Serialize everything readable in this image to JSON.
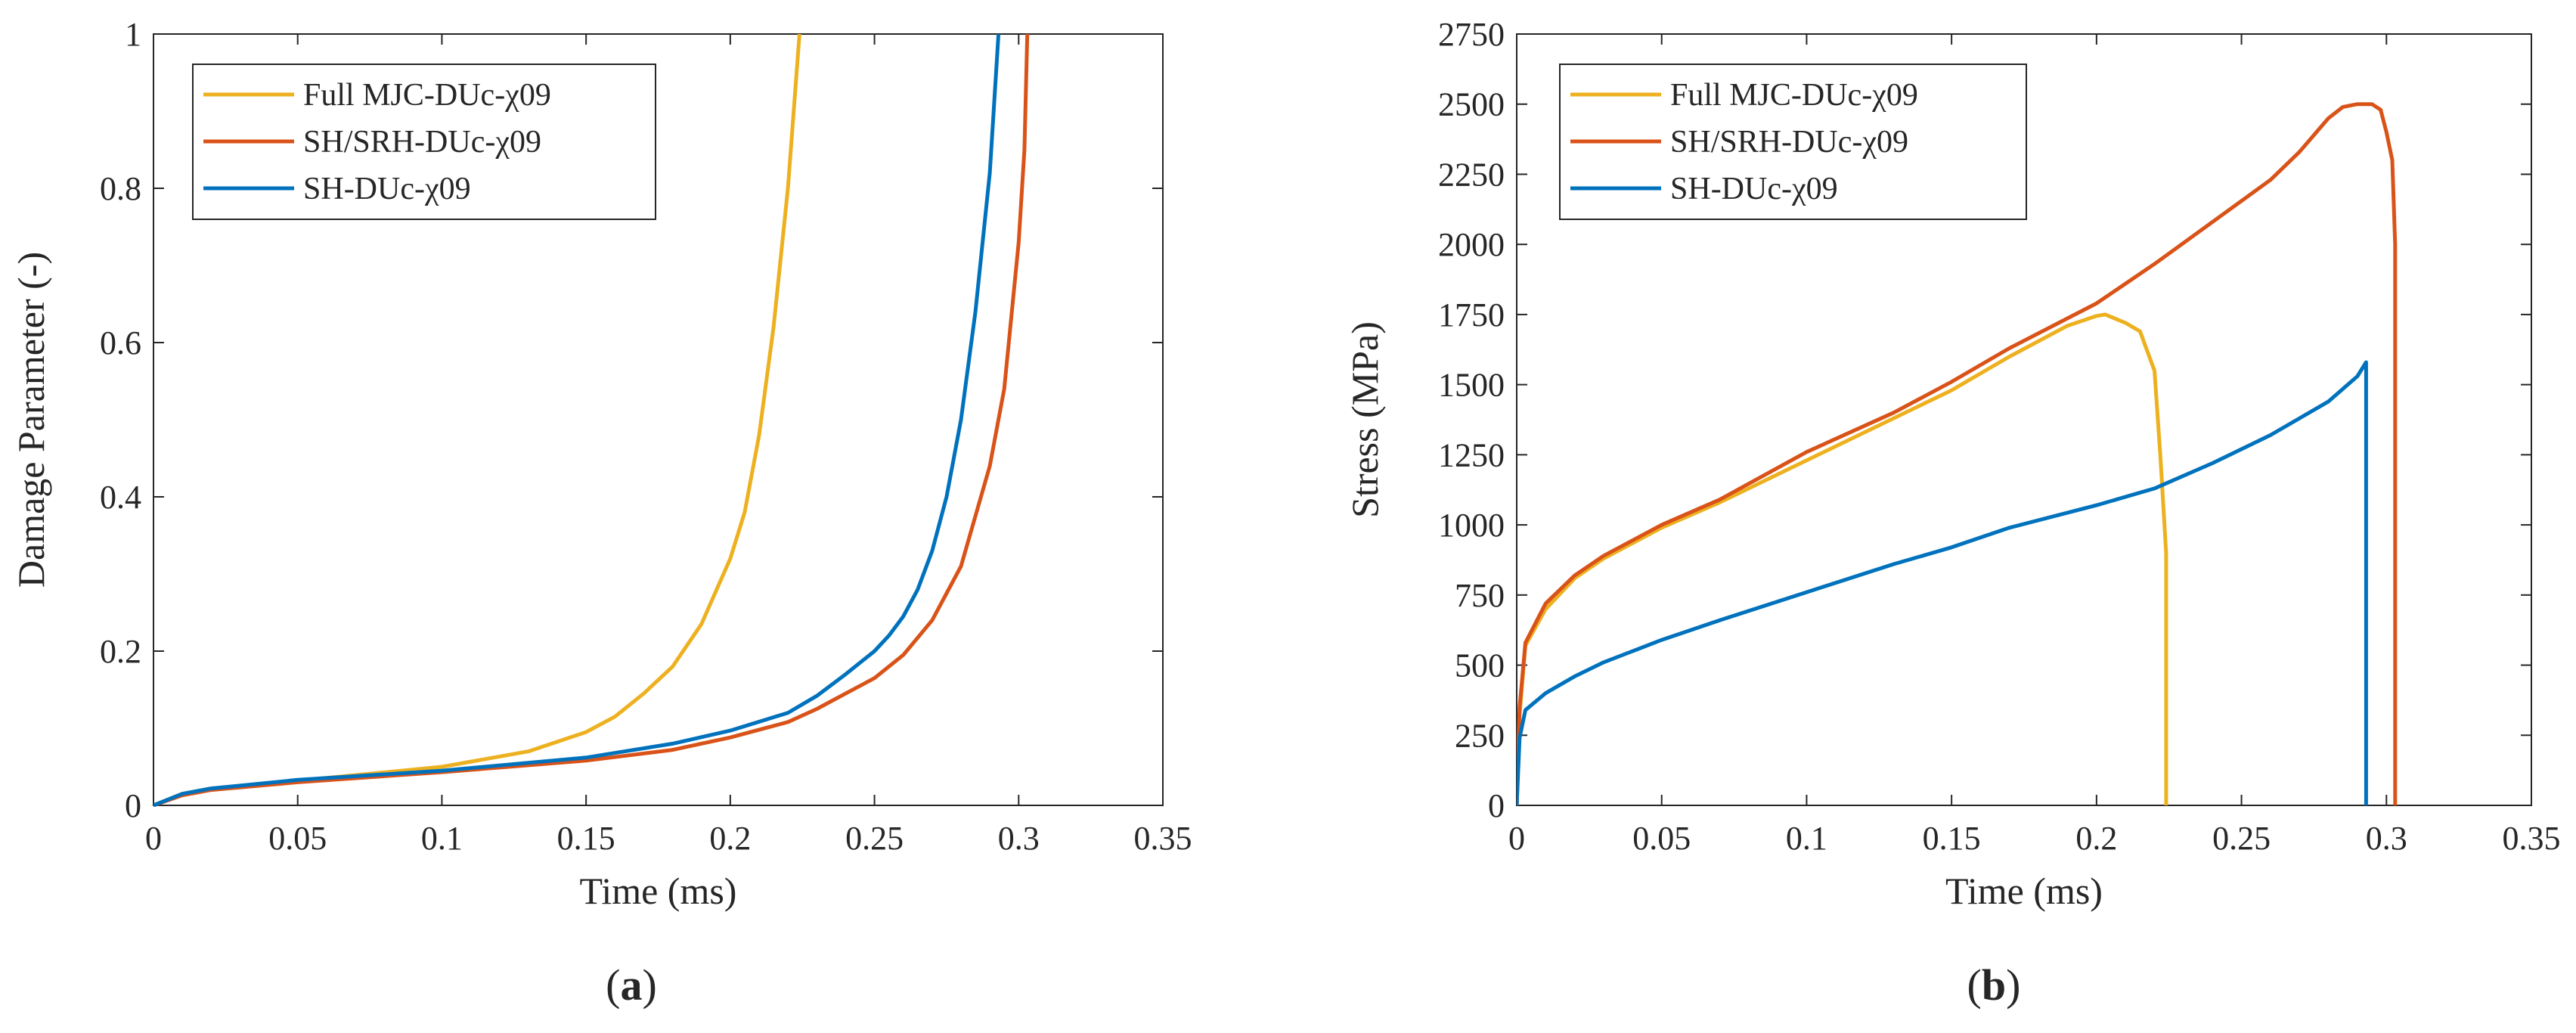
{
  "chart_data": [
    {
      "type": "line",
      "panel_label": "a",
      "title": "",
      "xlabel": "Time (ms)",
      "ylabel": "Damage Parameter (-)",
      "xlim": [
        0,
        0.35
      ],
      "ylim": [
        0,
        1
      ],
      "xticks": [
        0,
        0.05,
        0.1,
        0.15,
        0.2,
        0.25,
        0.3,
        0.35
      ],
      "yticks": [
        0,
        0.2,
        0.4,
        0.6,
        0.8,
        1
      ],
      "xtick_labels": [
        "0",
        "0.05",
        "0.1",
        "0.15",
        "0.2",
        "0.25",
        "0.3",
        "0.35"
      ],
      "ytick_labels": [
        "0",
        "0.2",
        "0.4",
        "0.6",
        "0.8",
        "1"
      ],
      "grid": false,
      "legend_position": "top-left",
      "series": [
        {
          "name": "Full MJC-DUc-χ09",
          "color": "#EDB120",
          "x": [
            0,
            0.01,
            0.02,
            0.05,
            0.1,
            0.13,
            0.15,
            0.16,
            0.17,
            0.18,
            0.19,
            0.2,
            0.205,
            0.21,
            0.215,
            0.22,
            0.224
          ],
          "y": [
            0,
            0.015,
            0.022,
            0.032,
            0.05,
            0.07,
            0.095,
            0.115,
            0.145,
            0.18,
            0.235,
            0.32,
            0.38,
            0.48,
            0.62,
            0.8,
            1.0
          ]
        },
        {
          "name": "SH/SRH-DUc-χ09",
          "color": "#D95319",
          "x": [
            0,
            0.01,
            0.02,
            0.05,
            0.1,
            0.15,
            0.18,
            0.2,
            0.22,
            0.23,
            0.24,
            0.25,
            0.26,
            0.27,
            0.28,
            0.29,
            0.295,
            0.3,
            0.302,
            0.303
          ],
          "y": [
            0,
            0.013,
            0.02,
            0.03,
            0.043,
            0.058,
            0.072,
            0.088,
            0.108,
            0.125,
            0.145,
            0.165,
            0.195,
            0.24,
            0.31,
            0.44,
            0.54,
            0.73,
            0.85,
            1.0
          ]
        },
        {
          "name": "SH-DUc-χ09",
          "color": "#0072BD",
          "x": [
            0,
            0.01,
            0.02,
            0.05,
            0.1,
            0.15,
            0.18,
            0.2,
            0.22,
            0.23,
            0.24,
            0.25,
            0.255,
            0.26,
            0.265,
            0.27,
            0.275,
            0.28,
            0.285,
            0.29,
            0.293
          ],
          "y": [
            0,
            0.015,
            0.022,
            0.033,
            0.045,
            0.062,
            0.08,
            0.097,
            0.12,
            0.142,
            0.17,
            0.2,
            0.22,
            0.245,
            0.28,
            0.33,
            0.4,
            0.5,
            0.64,
            0.82,
            1.0
          ]
        }
      ]
    },
    {
      "type": "line",
      "panel_label": "b",
      "title": "",
      "xlabel": "Time (ms)",
      "ylabel": "Stress (MPa)",
      "xlim": [
        0,
        0.35
      ],
      "ylim": [
        0,
        2750
      ],
      "xticks": [
        0,
        0.05,
        0.1,
        0.15,
        0.2,
        0.25,
        0.3,
        0.35
      ],
      "yticks": [
        0,
        250,
        500,
        750,
        1000,
        1250,
        1500,
        1750,
        2000,
        2250,
        2500,
        2750
      ],
      "xtick_labels": [
        "0",
        "0.05",
        "0.1",
        "0.15",
        "0.2",
        "0.25",
        "0.3",
        "0.35"
      ],
      "ytick_labels": [
        "0",
        "250",
        "500",
        "750",
        "1000",
        "1250",
        "1500",
        "1750",
        "2000",
        "2250",
        "2500",
        "2750"
      ],
      "grid": false,
      "legend_position": "top-left",
      "series": [
        {
          "name": "Full MJC-DUc-χ09",
          "color": "#EDB120",
          "x": [
            0,
            0.001,
            0.003,
            0.01,
            0.02,
            0.03,
            0.05,
            0.07,
            0.1,
            0.13,
            0.15,
            0.17,
            0.19,
            0.2,
            0.203,
            0.21,
            0.215,
            0.22,
            0.222,
            0.224,
            0.224
          ],
          "y": [
            0,
            320,
            570,
            700,
            810,
            880,
            990,
            1080,
            1230,
            1380,
            1480,
            1600,
            1710,
            1745,
            1750,
            1720,
            1690,
            1550,
            1250,
            900,
            0
          ]
        },
        {
          "name": "SH/SRH-DUc-χ09",
          "color": "#D95319",
          "x": [
            0,
            0.001,
            0.003,
            0.01,
            0.02,
            0.03,
            0.05,
            0.07,
            0.1,
            0.13,
            0.15,
            0.17,
            0.2,
            0.22,
            0.24,
            0.26,
            0.27,
            0.28,
            0.285,
            0.29,
            0.295,
            0.298,
            0.3,
            0.302,
            0.303,
            0.303
          ],
          "y": [
            0,
            350,
            580,
            720,
            820,
            890,
            1000,
            1090,
            1260,
            1400,
            1510,
            1630,
            1790,
            1930,
            2080,
            2230,
            2330,
            2450,
            2490,
            2500,
            2500,
            2480,
            2400,
            2300,
            2000,
            0
          ]
        },
        {
          "name": "SH-DUc-χ09",
          "color": "#0072BD",
          "x": [
            0,
            0.001,
            0.003,
            0.01,
            0.02,
            0.03,
            0.05,
            0.07,
            0.1,
            0.13,
            0.15,
            0.17,
            0.2,
            0.22,
            0.24,
            0.26,
            0.27,
            0.28,
            0.29,
            0.293,
            0.293
          ],
          "y": [
            0,
            240,
            340,
            400,
            460,
            510,
            590,
            660,
            760,
            860,
            920,
            990,
            1070,
            1130,
            1220,
            1320,
            1380,
            1440,
            1530,
            1580,
            0
          ]
        }
      ]
    }
  ]
}
